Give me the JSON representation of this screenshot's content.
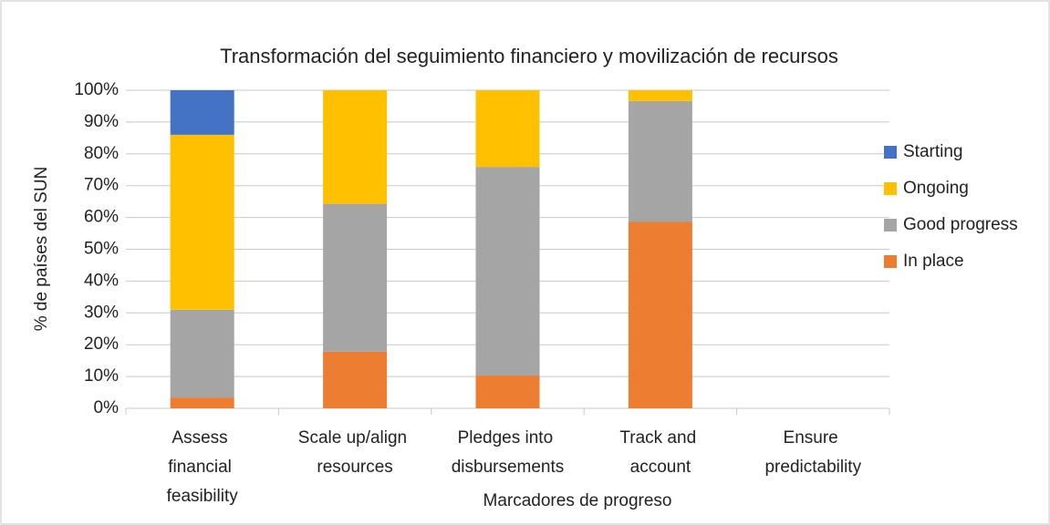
{
  "chart_data": {
    "type": "stacked_bar",
    "title": "Transformación del seguimiento financiero y movilización de recursos",
    "xlabel": "Marcadores de progreso",
    "ylabel": "% de países del SUN",
    "categories": [
      "Assess financial feasibility",
      "Scale up/align resources",
      "Pledges into disbursements",
      "Track and account",
      "Ensure predictability"
    ],
    "series": [
      {
        "name": "In place",
        "color": "#ed7d31",
        "values": [
          3.4,
          17.8,
          10.3,
          58.6,
          0
        ]
      },
      {
        "name": "Good progress",
        "color": "#a5a5a5",
        "values": [
          27.6,
          46.5,
          65.6,
          38,
          0
        ]
      },
      {
        "name": "Ongoing",
        "color": "#ffc000",
        "values": [
          55,
          35.7,
          24.1,
          3.4,
          0
        ]
      },
      {
        "name": "Starting",
        "color": "#4472c4",
        "values": [
          14,
          0,
          0,
          0,
          0
        ]
      }
    ],
    "ylim": [
      0,
      100
    ],
    "yticks": [
      {
        "value": 0,
        "label": "0%"
      },
      {
        "value": 10,
        "label": "10%"
      },
      {
        "value": 20,
        "label": "20%"
      },
      {
        "value": 30,
        "label": "30%"
      },
      {
        "value": 40,
        "label": "40%"
      },
      {
        "value": 50,
        "label": "50%"
      },
      {
        "value": 60,
        "label": "60%"
      },
      {
        "value": 70,
        "label": "70%"
      },
      {
        "value": 80,
        "label": "80%"
      },
      {
        "value": 90,
        "label": "90%"
      },
      {
        "value": 100,
        "label": "100%"
      }
    ],
    "grid": true,
    "legend": "right"
  }
}
